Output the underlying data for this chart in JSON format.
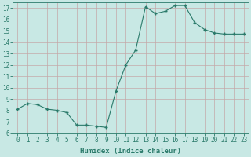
{
  "x": [
    0,
    1,
    2,
    3,
    4,
    5,
    6,
    7,
    8,
    9,
    10,
    11,
    12,
    13,
    14,
    15,
    16,
    17,
    18,
    19,
    20,
    21,
    22,
    23
  ],
  "y": [
    8.1,
    8.6,
    8.5,
    8.1,
    8.0,
    7.8,
    6.7,
    6.7,
    6.6,
    6.5,
    9.7,
    12.0,
    13.3,
    17.1,
    16.5,
    16.7,
    17.2,
    17.2,
    15.7,
    15.1,
    14.8,
    14.7,
    14.7,
    14.7
  ],
  "xlabel": "Humidex (Indice chaleur)",
  "ylim": [
    6,
    17.5
  ],
  "xlim": [
    -0.5,
    23.5
  ],
  "yticks": [
    6,
    7,
    8,
    9,
    10,
    11,
    12,
    13,
    14,
    15,
    16,
    17
  ],
  "xticks": [
    0,
    1,
    2,
    3,
    4,
    5,
    6,
    7,
    8,
    9,
    10,
    11,
    12,
    13,
    14,
    15,
    16,
    17,
    18,
    19,
    20,
    21,
    22,
    23
  ],
  "line_color": "#2a7a6a",
  "marker_color": "#2a7a6a",
  "bg_color": "#c8e8e4",
  "grid_color_major": "#b0d4d0",
  "grid_color_minor": "#d8eeec",
  "tick_label_color": "#2a7a6a",
  "xlabel_color": "#2a7a6a",
  "label_fontsize": 6.5,
  "tick_fontsize": 5.5
}
